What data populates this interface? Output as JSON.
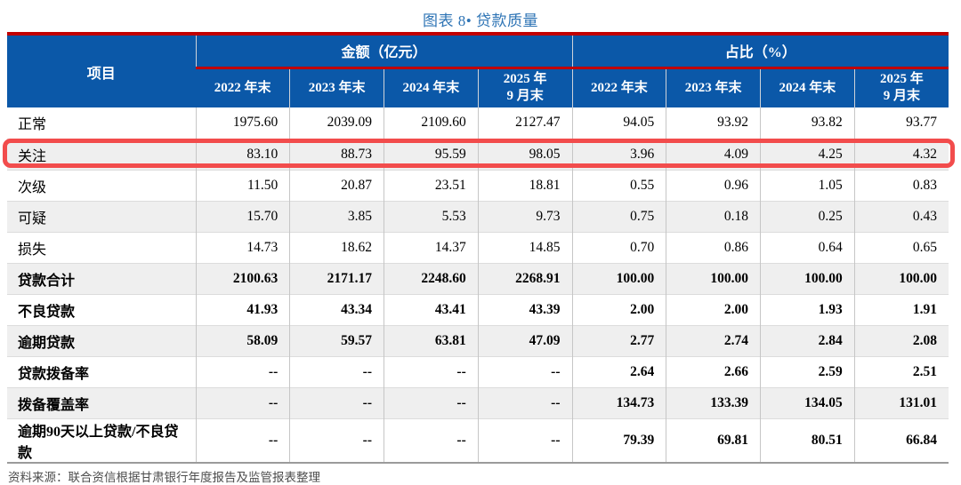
{
  "title": "图表 8• 贷款质量",
  "table": {
    "item_header": "项目",
    "amount_group": "金额（亿元）",
    "ratio_group": "占比（%）",
    "year_headers": [
      "2022 年末",
      "2023 年末",
      "2024 年末",
      "2025 年\n9 月末"
    ],
    "rows": [
      {
        "label": "正常",
        "amount": [
          "1975.60",
          "2039.09",
          "2109.60",
          "2127.47"
        ],
        "ratio": [
          "94.05",
          "93.92",
          "93.82",
          "93.77"
        ],
        "bold": false,
        "highlight": false
      },
      {
        "label": "关注",
        "amount": [
          "83.10",
          "88.73",
          "95.59",
          "98.05"
        ],
        "ratio": [
          "3.96",
          "4.09",
          "4.25",
          "4.32"
        ],
        "bold": false,
        "highlight": true
      },
      {
        "label": "次级",
        "amount": [
          "11.50",
          "20.87",
          "23.51",
          "18.81"
        ],
        "ratio": [
          "0.55",
          "0.96",
          "1.05",
          "0.83"
        ],
        "bold": false,
        "highlight": false
      },
      {
        "label": "可疑",
        "amount": [
          "15.70",
          "3.85",
          "5.53",
          "9.73"
        ],
        "ratio": [
          "0.75",
          "0.18",
          "0.25",
          "0.43"
        ],
        "bold": false,
        "highlight": false
      },
      {
        "label": "损失",
        "amount": [
          "14.73",
          "18.62",
          "14.37",
          "14.85"
        ],
        "ratio": [
          "0.70",
          "0.86",
          "0.64",
          "0.65"
        ],
        "bold": false,
        "highlight": false
      },
      {
        "label": "贷款合计",
        "amount": [
          "2100.63",
          "2171.17",
          "2248.60",
          "2268.91"
        ],
        "ratio": [
          "100.00",
          "100.00",
          "100.00",
          "100.00"
        ],
        "bold": true,
        "highlight": false
      },
      {
        "label": "不良贷款",
        "amount": [
          "41.93",
          "43.34",
          "43.41",
          "43.39"
        ],
        "ratio": [
          "2.00",
          "2.00",
          "1.93",
          "1.91"
        ],
        "bold": true,
        "highlight": false
      },
      {
        "label": "逾期贷款",
        "amount": [
          "58.09",
          "59.57",
          "63.81",
          "47.09"
        ],
        "ratio": [
          "2.77",
          "2.74",
          "2.84",
          "2.08"
        ],
        "bold": true,
        "highlight": false
      },
      {
        "label": "贷款拨备率",
        "amount": [
          "--",
          "--",
          "--",
          "--"
        ],
        "ratio": [
          "2.64",
          "2.66",
          "2.59",
          "2.51"
        ],
        "bold": true,
        "highlight": false
      },
      {
        "label": "拨备覆盖率",
        "amount": [
          "--",
          "--",
          "--",
          "--"
        ],
        "ratio": [
          "134.73",
          "133.39",
          "134.05",
          "131.01"
        ],
        "bold": true,
        "highlight": false
      },
      {
        "label": "逾期90天以上贷款/不良贷款",
        "amount": [
          "--",
          "--",
          "--",
          "--"
        ],
        "ratio": [
          "79.39",
          "69.81",
          "80.51",
          "66.84"
        ],
        "bold": true,
        "highlight": false
      }
    ]
  },
  "source": "资料来源：联合资信根据甘肃银行年度报告及监管报表整理",
  "colors": {
    "header_bg": "#0b58a8",
    "accent_red": "#c00000",
    "highlight_red": "#f24c4c",
    "row_alt": "#efefef",
    "title_blue": "#2e74b5"
  }
}
